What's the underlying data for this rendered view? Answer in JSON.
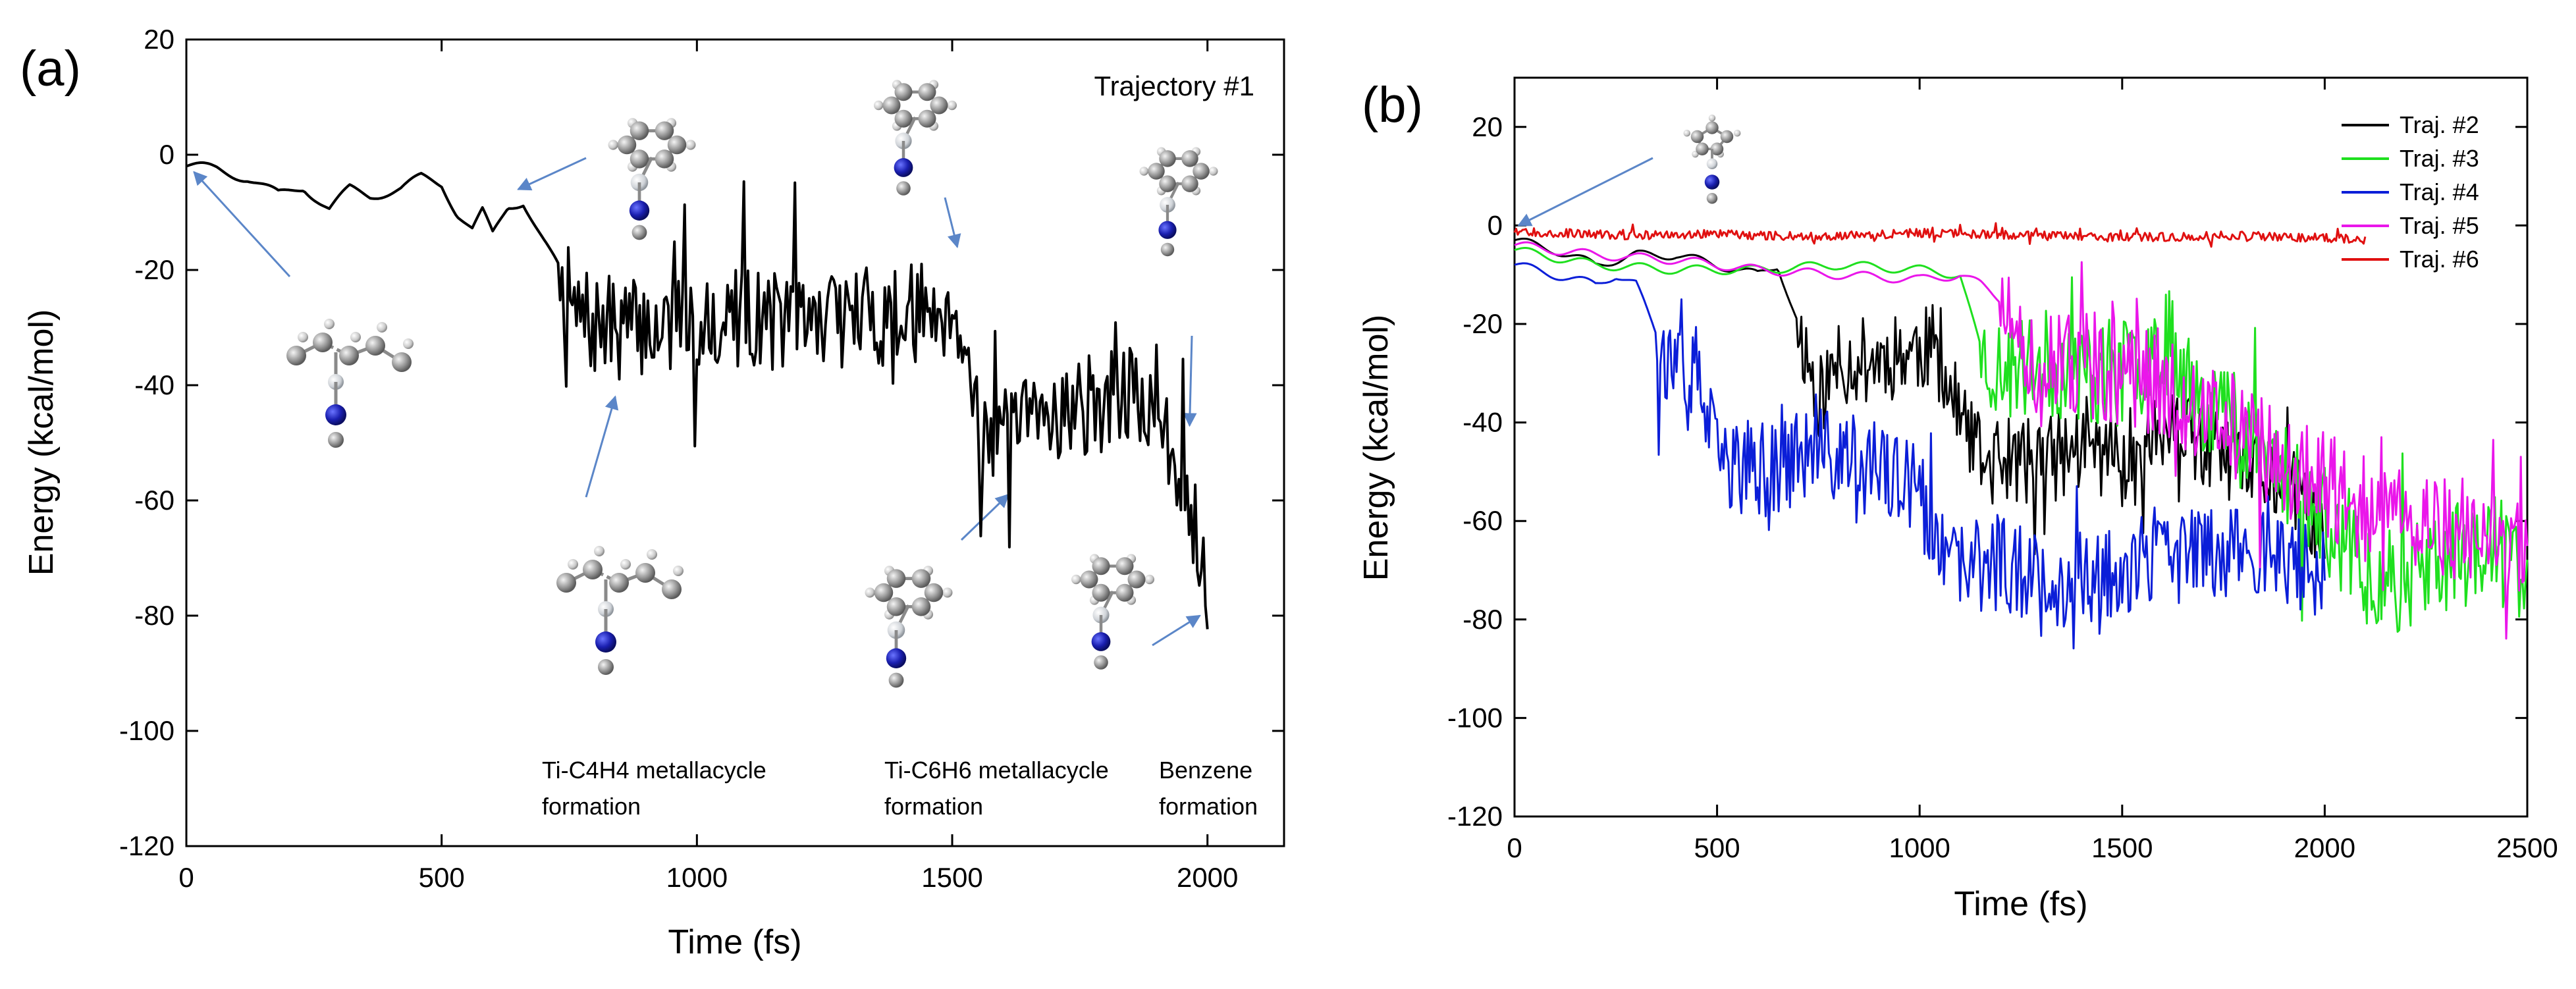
{
  "chart_data": [
    {
      "panel": "(a)",
      "type": "line",
      "title": "",
      "xlabel": "Time (fs)",
      "ylabel": "Energy (kcal/mol)",
      "xlim": [
        0,
        2150
      ],
      "ylim": [
        -120,
        20
      ],
      "xticks": [
        0,
        500,
        1000,
        1500,
        2000
      ],
      "yticks": [
        20,
        0,
        -20,
        -40,
        -60,
        -80,
        -100,
        -120
      ],
      "legend": "Trajectory #1",
      "series": [
        {
          "name": "Trajectory #1",
          "color": "#000000",
          "anchors": [
            [
              0,
              -2
            ],
            [
              60,
              -2.5
            ],
            [
              120,
              -4
            ],
            [
              180,
              -7
            ],
            [
              230,
              -5.5
            ],
            [
              280,
              -9.5
            ],
            [
              320,
              -6
            ],
            [
              360,
              -7
            ],
            [
              420,
              -6
            ],
            [
              460,
              -4
            ],
            [
              500,
              -5
            ],
            [
              530,
              -10
            ],
            [
              560,
              -13
            ],
            [
              580,
              -10
            ],
            [
              600,
              -14
            ],
            [
              630,
              -9
            ],
            [
              660,
              -8
            ],
            [
              700,
              -15
            ],
            [
              730,
              -20
            ],
            [
              760,
              -28
            ],
            [
              800,
              -30
            ],
            [
              900,
              -30
            ],
            [
              1000,
              -29
            ],
            [
              1100,
              -28
            ],
            [
              1200,
              -29
            ],
            [
              1300,
              -28
            ],
            [
              1400,
              -28
            ],
            [
              1500,
              -26
            ],
            [
              1520,
              -30
            ],
            [
              1540,
              -42
            ],
            [
              1560,
              -47
            ],
            [
              1600,
              -50
            ],
            [
              1700,
              -44
            ],
            [
              1800,
              -43
            ],
            [
              1880,
              -42
            ],
            [
              1900,
              -48
            ],
            [
              1950,
              -55
            ],
            [
              1980,
              -65
            ],
            [
              2000,
              -72
            ]
          ],
          "noise_start": 730,
          "noise_amp": 9
        }
      ],
      "annotations": [
        {
          "id": "label-metallacycle-c4h4",
          "lines": [
            "Ti-C4H4 metallacycle",
            "formation"
          ]
        },
        {
          "id": "label-metallacycle-c6h6",
          "lines": [
            "Ti-C6H6  metallacycle",
            "formation"
          ]
        },
        {
          "id": "label-benzene",
          "lines": [
            "Benzene",
            "formation"
          ]
        }
      ],
      "structure_icons": [
        "molecule-start-icon",
        "molecule-c4h4-top-icon",
        "molecule-c4h4-bottom-icon",
        "molecule-c6h6-top-icon",
        "molecule-c6h6-bottom-icon",
        "molecule-benzene-top-icon",
        "molecule-benzene-bottom-icon"
      ]
    },
    {
      "panel": "(b)",
      "type": "line",
      "title": "",
      "xlabel": "Time (fs)",
      "ylabel": "Energy (kcal/mol)",
      "xlim": [
        0,
        2500
      ],
      "ylim": [
        -120,
        30
      ],
      "xticks": [
        0,
        500,
        1000,
        1500,
        2000,
        2500
      ],
      "yticks": [
        20,
        0,
        -20,
        -40,
        -60,
        -80,
        -100,
        -120
      ],
      "legend_position": "top-right",
      "series": [
        {
          "name": "Traj. #2",
          "color": "#000000",
          "anchors": [
            [
              0,
              -3
            ],
            [
              100,
              -5
            ],
            [
              200,
              -8
            ],
            [
              300,
              -6
            ],
            [
              400,
              -6
            ],
            [
              500,
              -8
            ],
            [
              600,
              -10
            ],
            [
              650,
              -8
            ],
            [
              700,
              -20
            ],
            [
              750,
              -35
            ],
            [
              800,
              -28
            ],
            [
              900,
              -27
            ],
            [
              1000,
              -25
            ],
            [
              1050,
              -25
            ],
            [
              1080,
              -35
            ],
            [
              1150,
              -48
            ],
            [
              1300,
              -48
            ],
            [
              1400,
              -45
            ],
            [
              1500,
              -47
            ],
            [
              1600,
              -42
            ],
            [
              1700,
              -45
            ],
            [
              1800,
              -50
            ],
            [
              1900,
              -52
            ],
            [
              2000,
              -62
            ]
          ],
          "noise_start": 700,
          "noise_amp": 9
        },
        {
          "name": "Traj. #3",
          "color": "#1fe01f",
          "anchors": [
            [
              0,
              -5
            ],
            [
              200,
              -8
            ],
            [
              400,
              -9
            ],
            [
              600,
              -9
            ],
            [
              800,
              -8
            ],
            [
              1000,
              -9
            ],
            [
              1100,
              -10
            ],
            [
              1150,
              -25
            ],
            [
              1200,
              -30
            ],
            [
              1300,
              -28
            ],
            [
              1400,
              -30
            ],
            [
              1500,
              -30
            ],
            [
              1600,
              -22
            ],
            [
              1700,
              -35
            ],
            [
              1800,
              -40
            ],
            [
              1900,
              -50
            ],
            [
              2000,
              -60
            ],
            [
              2100,
              -70
            ],
            [
              2200,
              -72
            ],
            [
              2300,
              -68
            ],
            [
              2400,
              -65
            ],
            [
              2500,
              -70
            ]
          ],
          "noise_start": 1150,
          "noise_amp": 11
        },
        {
          "name": "Traj. #4",
          "color": "#0b1ed8",
          "anchors": [
            [
              0,
              -8
            ],
            [
              100,
              -10
            ],
            [
              200,
              -12
            ],
            [
              250,
              -10
            ],
            [
              300,
              -12
            ],
            [
              350,
              -22
            ],
            [
              400,
              -32
            ],
            [
              450,
              -30
            ],
            [
              500,
              -48
            ],
            [
              600,
              -50
            ],
            [
              700,
              -47
            ],
            [
              800,
              -47
            ],
            [
              900,
              -50
            ],
            [
              1000,
              -55
            ],
            [
              1050,
              -68
            ],
            [
              1100,
              -70
            ],
            [
              1200,
              -68
            ],
            [
              1300,
              -72
            ],
            [
              1400,
              -72
            ],
            [
              1500,
              -70
            ],
            [
              1600,
              -68
            ],
            [
              1700,
              -66
            ],
            [
              1800,
              -65
            ],
            [
              1900,
              -68
            ],
            [
              2000,
              -70
            ]
          ],
          "noise_start": 350,
          "noise_amp": 10
        },
        {
          "name": "Traj. #5",
          "color": "#ea16ea",
          "anchors": [
            [
              0,
              -4
            ],
            [
              200,
              -6
            ],
            [
              400,
              -7
            ],
            [
              600,
              -9
            ],
            [
              800,
              -10
            ],
            [
              1000,
              -11
            ],
            [
              1100,
              -10
            ],
            [
              1150,
              -12
            ],
            [
              1200,
              -15
            ],
            [
              1250,
              -28
            ],
            [
              1300,
              -30
            ],
            [
              1400,
              -28
            ],
            [
              1500,
              -30
            ],
            [
              1600,
              -32
            ],
            [
              1700,
              -38
            ],
            [
              1800,
              -42
            ],
            [
              1900,
              -48
            ],
            [
              2000,
              -52
            ],
            [
              2100,
              -58
            ],
            [
              2200,
              -60
            ],
            [
              2300,
              -62
            ],
            [
              2400,
              -65
            ],
            [
              2500,
              -68
            ]
          ],
          "noise_start": 1200,
          "noise_amp": 11
        },
        {
          "name": "Traj. #6",
          "color": "#e01010",
          "anchors": [
            [
              0,
              -1
            ],
            [
              100,
              -1.5
            ],
            [
              250,
              -2
            ],
            [
              500,
              -1.8
            ],
            [
              750,
              -2.2
            ],
            [
              1000,
              -1.5
            ],
            [
              1250,
              -2
            ],
            [
              1500,
              -2.5
            ],
            [
              1750,
              -2
            ],
            [
              2000,
              -2.5
            ],
            [
              2100,
              -3
            ]
          ],
          "noise_start": 0,
          "noise_amp": 0.9
        }
      ],
      "structure_icons": [
        "molecule-initial-icon"
      ]
    }
  ],
  "panels": {
    "a": {
      "label": "(a)",
      "trajectory_label": "Trajectory #1"
    },
    "b": {
      "label": "(b)"
    }
  }
}
